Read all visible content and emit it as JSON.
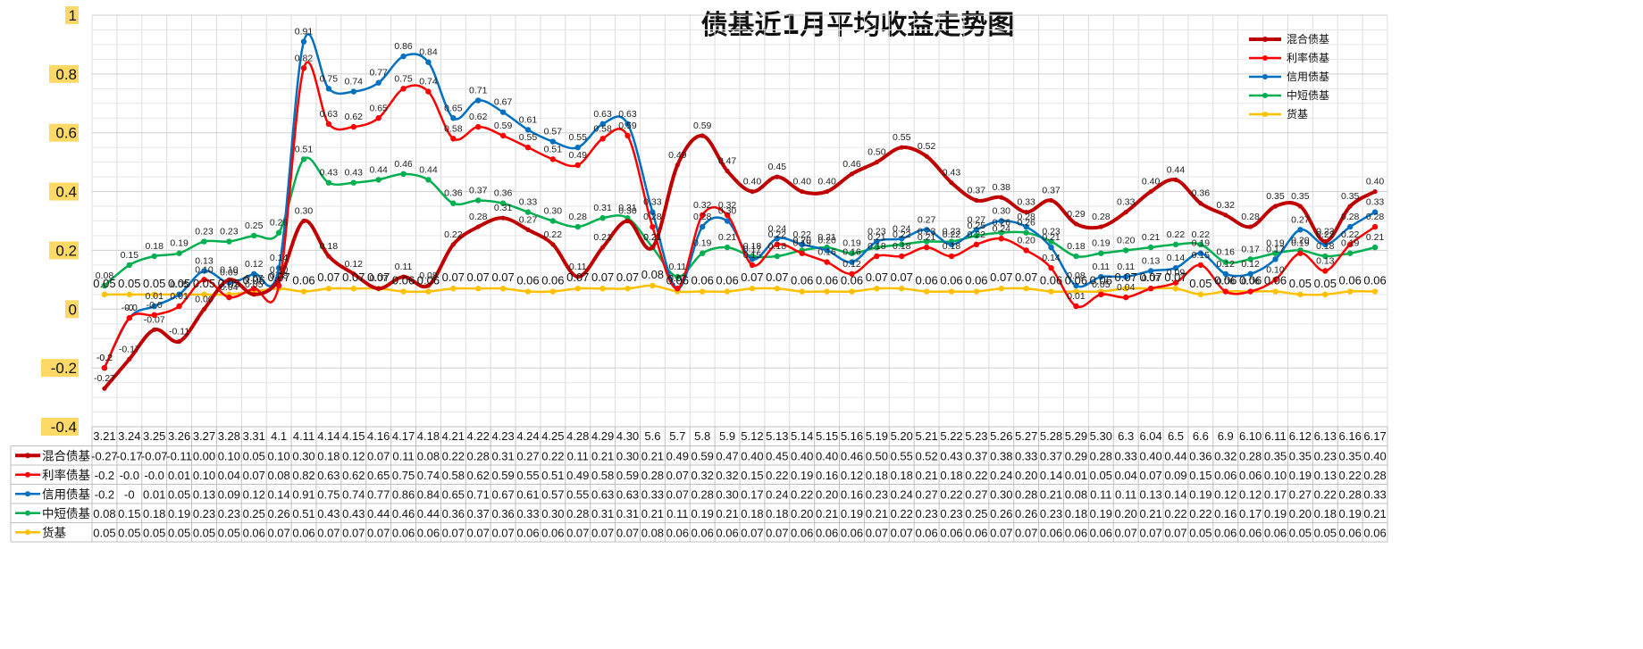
{
  "chart_data": {
    "type": "line",
    "title": "债基近1月平均收益走势图",
    "xlabel": "",
    "ylabel": "",
    "ylim": [
      -0.4,
      1.0
    ],
    "yticks": [
      "-0.4",
      "-0.2",
      "0",
      "0.2",
      "0.4",
      "0.6",
      "0.8",
      "1"
    ],
    "grid": true,
    "legend_position": "top-right",
    "categories": [
      "3.21",
      "3.24",
      "3.25",
      "3.26",
      "3.27",
      "3.28",
      "3.31",
      "4.1",
      "4.11",
      "4.14",
      "4.15",
      "4.16",
      "4.17",
      "4.18",
      "4.21",
      "4.22",
      "4.23",
      "4.24",
      "4.25",
      "4.28",
      "4.29",
      "4.30",
      "5.6",
      "5.7",
      "5.8",
      "5.9",
      "5.12",
      "5.13",
      "5.14",
      "5.15",
      "5.16",
      "5.19",
      "5.20",
      "5.21",
      "5.22",
      "5.23",
      "5.26",
      "5.27",
      "5.28",
      "5.29",
      "5.30",
      "6.3",
      "6.04",
      "6.5",
      "6.6",
      "6.9",
      "6.10",
      "6.11",
      "6.12",
      "6.13",
      "6.16",
      "6.17"
    ],
    "series": [
      {
        "name": "混合债基",
        "color": "#c00000",
        "width": 4,
        "values": [
          -0.27,
          -0.17,
          -0.07,
          -0.11,
          0.0,
          0.1,
          0.05,
          0.1,
          0.3,
          0.18,
          0.12,
          0.07,
          0.11,
          0.08,
          0.22,
          0.28,
          0.31,
          0.27,
          0.22,
          0.11,
          0.21,
          0.3,
          0.21,
          0.49,
          0.59,
          0.47,
          0.4,
          0.45,
          0.4,
          0.4,
          0.46,
          0.5,
          0.55,
          0.52,
          0.43,
          0.37,
          0.38,
          0.33,
          0.37,
          0.29,
          0.28,
          0.33,
          0.4,
          0.44,
          0.36,
          0.32,
          0.28,
          0.35,
          0.35,
          0.23,
          0.35,
          0.4
        ],
        "labels": [
          "-0.27",
          "-0.17",
          "-0.07",
          "-0.11",
          "0.00",
          "0.10",
          "0.05",
          "0.10",
          "0.30",
          "0.18",
          "0.12",
          "0.07",
          "0.11",
          "0.08",
          "0.22",
          "0.28",
          "0.31",
          "0.27",
          "0.22",
          "0.11",
          "0.21",
          "0.30",
          "0.21",
          "0.49",
          "0.59",
          "0.47",
          "0.40",
          "0.45",
          "0.40",
          "0.40",
          "0.46",
          "0.50",
          "0.55",
          "0.52",
          "0.43",
          "0.37",
          "0.38",
          "0.33",
          "0.37",
          "0.29",
          "0.28",
          "0.33",
          "0.40",
          "0.44",
          "0.36",
          "0.32",
          "0.28",
          "0.35",
          "0.35",
          "0.23",
          "0.35",
          "0.40"
        ]
      },
      {
        "name": "利率债基",
        "color": "#ff0000",
        "width": 2.5,
        "values": [
          -0.2,
          -0.03,
          -0.02,
          0.01,
          0.1,
          0.04,
          0.07,
          0.08,
          0.82,
          0.63,
          0.62,
          0.65,
          0.75,
          0.74,
          0.58,
          0.62,
          0.59,
          0.55,
          0.51,
          0.49,
          0.58,
          0.59,
          0.28,
          0.07,
          0.32,
          0.32,
          0.15,
          0.22,
          0.19,
          0.16,
          0.12,
          0.18,
          0.18,
          0.21,
          0.18,
          0.22,
          0.24,
          0.2,
          0.14,
          0.01,
          0.05,
          0.04,
          0.07,
          0.09,
          0.15,
          0.06,
          0.06,
          0.1,
          0.19,
          0.13,
          0.22,
          0.28
        ],
        "labels": [
          "-0.2",
          "-0.0",
          "-0.0",
          "0.01",
          "0.10",
          "0.04",
          "0.07",
          "0.08",
          "0.82",
          "0.63",
          "0.62",
          "0.65",
          "0.75",
          "0.74",
          "0.58",
          "0.62",
          "0.59",
          "0.55",
          "0.51",
          "0.49",
          "0.58",
          "0.59",
          "0.28",
          "0.07",
          "0.32",
          "0.32",
          "0.15",
          "0.22",
          "0.19",
          "0.16",
          "0.12",
          "0.18",
          "0.18",
          "0.21",
          "0.18",
          "0.22",
          "0.24",
          "0.20",
          "0.14",
          "0.01",
          "0.05",
          "0.04",
          "0.07",
          "0.09",
          "0.15",
          "0.06",
          "0.06",
          "0.10",
          "0.19",
          "0.13",
          "0.22",
          "0.28"
        ]
      },
      {
        "name": "信用债基",
        "color": "#0070c0",
        "width": 2.5,
        "values": [
          -0.2,
          -0.03,
          0.01,
          0.05,
          0.13,
          0.09,
          0.12,
          0.14,
          0.91,
          0.75,
          0.74,
          0.77,
          0.86,
          0.84,
          0.65,
          0.71,
          0.67,
          0.61,
          0.57,
          0.55,
          0.63,
          0.63,
          0.33,
          0.07,
          0.28,
          0.3,
          0.17,
          0.24,
          0.22,
          0.2,
          0.16,
          0.23,
          0.24,
          0.27,
          0.22,
          0.27,
          0.3,
          0.28,
          0.21,
          0.08,
          0.11,
          0.11,
          0.13,
          0.14,
          0.19,
          0.12,
          0.12,
          0.17,
          0.27,
          0.22,
          0.28,
          0.33
        ],
        "labels": [
          "-0.2",
          "-0",
          "0.01",
          "0.05",
          "0.13",
          "0.09",
          "0.12",
          "0.14",
          "0.91",
          "0.75",
          "0.74",
          "0.77",
          "0.86",
          "0.84",
          "0.65",
          "0.71",
          "0.67",
          "0.61",
          "0.57",
          "0.55",
          "0.63",
          "0.63",
          "0.33",
          "0.07",
          "0.28",
          "0.30",
          "0.17",
          "0.24",
          "0.22",
          "0.20",
          "0.16",
          "0.23",
          "0.24",
          "0.27",
          "0.22",
          "0.27",
          "0.30",
          "0.28",
          "0.21",
          "0.08",
          "0.11",
          "0.11",
          "0.13",
          "0.14",
          "0.19",
          "0.12",
          "0.12",
          "0.17",
          "0.27",
          "0.22",
          "0.28",
          "0.33"
        ]
      },
      {
        "name": "中短债基",
        "color": "#00b050",
        "width": 2.5,
        "values": [
          0.08,
          0.15,
          0.18,
          0.19,
          0.23,
          0.23,
          0.25,
          0.26,
          0.51,
          0.43,
          0.43,
          0.44,
          0.46,
          0.44,
          0.36,
          0.37,
          0.36,
          0.33,
          0.3,
          0.28,
          0.31,
          0.31,
          0.21,
          0.11,
          0.19,
          0.21,
          0.18,
          0.18,
          0.2,
          0.21,
          0.19,
          0.21,
          0.22,
          0.23,
          0.23,
          0.25,
          0.26,
          0.26,
          0.23,
          0.18,
          0.19,
          0.2,
          0.21,
          0.22,
          0.22,
          0.16,
          0.17,
          0.19,
          0.2,
          0.18,
          0.19,
          0.21
        ],
        "labels": [
          "0.08",
          "0.15",
          "0.18",
          "0.19",
          "0.23",
          "0.23",
          "0.25",
          "0.26",
          "0.51",
          "0.43",
          "0.43",
          "0.44",
          "0.46",
          "0.44",
          "0.36",
          "0.37",
          "0.36",
          "0.33",
          "0.30",
          "0.28",
          "0.31",
          "0.31",
          "0.21",
          "0.11",
          "0.19",
          "0.21",
          "0.18",
          "0.18",
          "0.20",
          "0.21",
          "0.19",
          "0.21",
          "0.22",
          "0.23",
          "0.23",
          "0.25",
          "0.26",
          "0.26",
          "0.23",
          "0.18",
          "0.19",
          "0.20",
          "0.21",
          "0.22",
          "0.22",
          "0.16",
          "0.17",
          "0.19",
          "0.20",
          "0.18",
          "0.19",
          "0.21"
        ]
      },
      {
        "name": "货基",
        "color": "#ffc000",
        "width": 2.5,
        "values": [
          0.05,
          0.05,
          0.05,
          0.05,
          0.05,
          0.05,
          0.06,
          0.07,
          0.06,
          0.07,
          0.07,
          0.07,
          0.06,
          0.06,
          0.07,
          0.07,
          0.07,
          0.06,
          0.06,
          0.07,
          0.07,
          0.07,
          0.08,
          0.06,
          0.06,
          0.06,
          0.07,
          0.07,
          0.06,
          0.06,
          0.06,
          0.07,
          0.07,
          0.06,
          0.06,
          0.06,
          0.07,
          0.07,
          0.06,
          0.06,
          0.06,
          0.07,
          0.07,
          0.07,
          0.05,
          0.06,
          0.06,
          0.06,
          0.05,
          0.05,
          0.06,
          0.06
        ],
        "labels": [
          "0.05",
          "0.05",
          "0.05",
          "0.05",
          "0.05",
          "0.05",
          "0.06",
          "0.07",
          "0.06",
          "0.07",
          "0.07",
          "0.07",
          "0.06",
          "0.06",
          "0.07",
          "0.07",
          "0.07",
          "0.06",
          "0.06",
          "0.07",
          "0.07",
          "0.07",
          "0.08",
          "0.06",
          "0.06",
          "0.06",
          "0.07",
          "0.07",
          "0.06",
          "0.06",
          "0.06",
          "0.07",
          "0.07",
          "0.06",
          "0.06",
          "0.06",
          "0.07",
          "0.07",
          "0.06",
          "0.06",
          "0.06",
          "0.07",
          "0.07",
          "0.07",
          "0.05",
          "0.06",
          "0.06",
          "0.06",
          "0.05",
          "0.05",
          "0.06",
          "0.06"
        ]
      }
    ]
  }
}
